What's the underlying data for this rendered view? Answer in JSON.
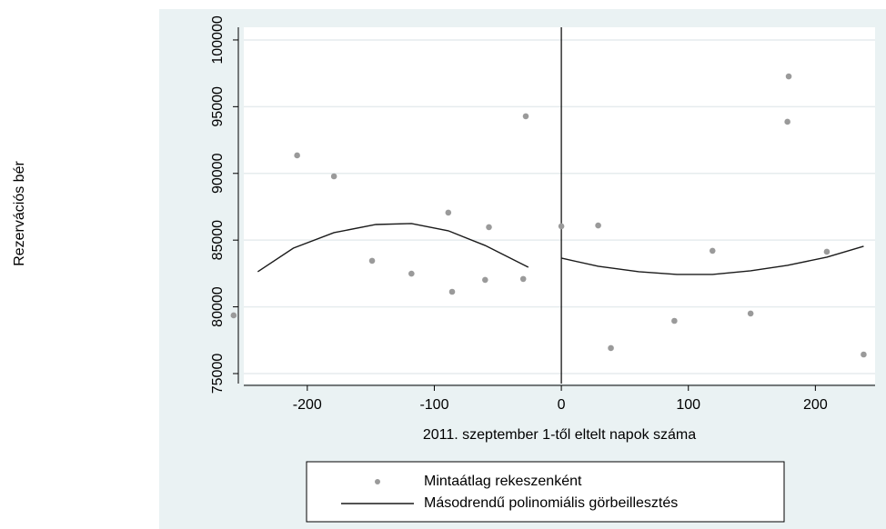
{
  "chart_data": {
    "type": "scatter",
    "xlabel": "2011. szeptember 1-től eltelt napok száma",
    "ylabel": "Rezervációs bér",
    "xlim": [
      -250,
      247
    ],
    "ylim": [
      74250,
      100950
    ],
    "xticks": [
      -200,
      -100,
      0,
      100,
      200
    ],
    "yticks": [
      75000,
      80000,
      85000,
      90000,
      95000,
      100000
    ],
    "grid": true,
    "xline": 0,
    "series": [
      {
        "name": "Mintaátlag rekeszenként",
        "type": "scatter",
        "color": "#9a9a9a",
        "x": [
          -258,
          -208,
          -179,
          -149,
          -118,
          -89,
          -86,
          -57,
          -60,
          -30,
          -28,
          0,
          29,
          39,
          89,
          119,
          149,
          178,
          179,
          209,
          238
        ],
        "values": [
          79360,
          91350,
          89780,
          83450,
          82490,
          87060,
          81130,
          85970,
          82020,
          82090,
          94280,
          86040,
          86100,
          76910,
          78950,
          84200,
          79500,
          93870,
          97270,
          84130,
          76430
        ]
      },
      {
        "name": "Másodrendű polinomiális görbeillesztés",
        "type": "line",
        "color": "#1a1a1a",
        "x": [
          -239,
          -211,
          -179,
          -146,
          -118,
          -89,
          -60,
          -26,
          null,
          0,
          29,
          61,
          91,
          119,
          149,
          178,
          209,
          238
        ],
        "values": [
          82630,
          84400,
          85560,
          86170,
          86240,
          85700,
          84600,
          82970,
          null,
          83650,
          83040,
          82630,
          82430,
          82430,
          82700,
          83110,
          83720,
          84540
        ]
      }
    ]
  }
}
